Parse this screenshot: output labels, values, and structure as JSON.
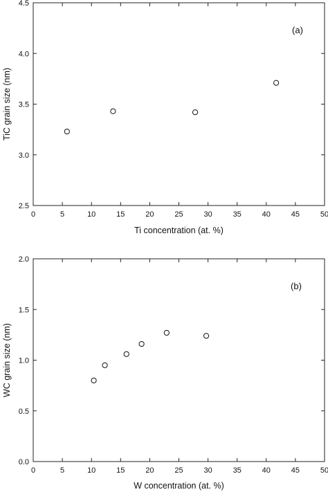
{
  "chart_data": [
    {
      "type": "scatter",
      "panel_label": "(a)",
      "xlabel": "Ti concentration (at. %)",
      "ylabel": "TiC grain size (nm)",
      "xlim": [
        0,
        50
      ],
      "ylim": [
        2.5,
        4.5
      ],
      "xticks": [
        0,
        5,
        10,
        15,
        20,
        25,
        30,
        35,
        40,
        45,
        50
      ],
      "yticks": [
        2.5,
        3.0,
        3.5,
        4.0,
        4.5
      ],
      "xtick_labels": [
        "0",
        "5",
        "10",
        "15",
        "20",
        "25",
        "30",
        "35",
        "40",
        "45",
        "50"
      ],
      "ytick_labels": [
        "2.5",
        "3.0",
        "3.5",
        "4.0",
        "4.5"
      ],
      "points": [
        {
          "x": 5.8,
          "y": 3.23
        },
        {
          "x": 13.7,
          "y": 3.43
        },
        {
          "x": 27.8,
          "y": 3.42
        },
        {
          "x": 41.7,
          "y": 3.71
        }
      ],
      "grid": false,
      "marker": "open-circle"
    },
    {
      "type": "scatter",
      "panel_label": "(b)",
      "xlabel": "W concentration (at. %)",
      "ylabel": "WC grain size (nm)",
      "xlim": [
        0,
        50
      ],
      "ylim": [
        0.0,
        2.0
      ],
      "xticks": [
        0,
        5,
        10,
        15,
        20,
        25,
        30,
        35,
        40,
        45,
        50
      ],
      "yticks": [
        0.0,
        0.5,
        1.0,
        1.5,
        2.0
      ],
      "xtick_labels": [
        "0",
        "5",
        "10",
        "15",
        "20",
        "25",
        "30",
        "35",
        "40",
        "45",
        "50"
      ],
      "ytick_labels": [
        "0.0",
        "0.5",
        "1.0",
        "1.5",
        "2.0"
      ],
      "points": [
        {
          "x": 10.4,
          "y": 0.8
        },
        {
          "x": 12.3,
          "y": 0.95
        },
        {
          "x": 16.0,
          "y": 1.06
        },
        {
          "x": 18.6,
          "y": 1.16
        },
        {
          "x": 22.9,
          "y": 1.27
        },
        {
          "x": 29.7,
          "y": 1.24
        }
      ],
      "grid": false,
      "marker": "open-circle"
    }
  ]
}
